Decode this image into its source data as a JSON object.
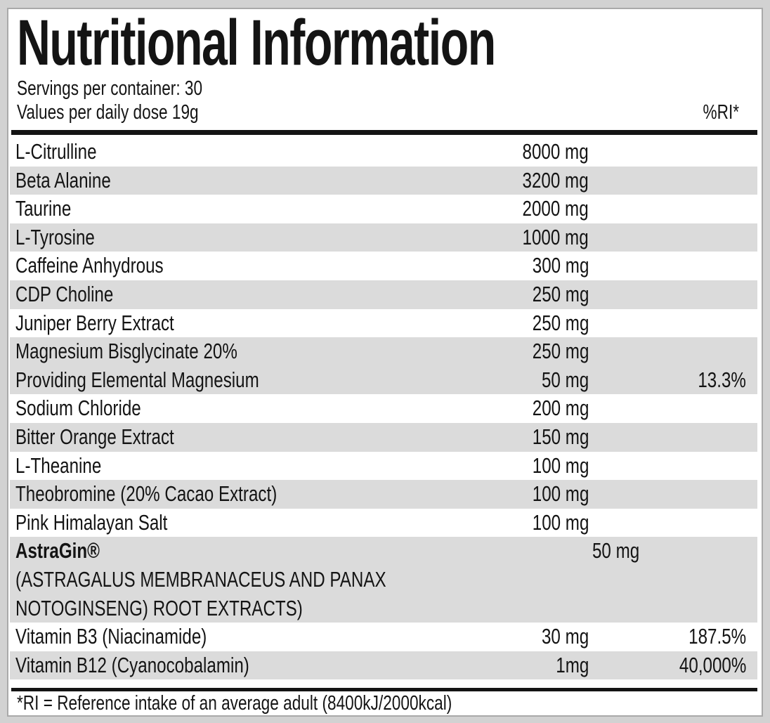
{
  "title": "Nutritional Information",
  "header": {
    "servings": "Servings per container: 30",
    "dose": "Values per daily dose 19g",
    "ri_column": "%RI*"
  },
  "table": {
    "rows": [
      {
        "name": "L-Citrulline",
        "amount": "8000 mg",
        "ri": "",
        "shaded": false
      },
      {
        "name": "Beta Alanine",
        "amount": "3200 mg",
        "ri": "",
        "shaded": true
      },
      {
        "name": "Taurine",
        "amount": "2000 mg",
        "ri": "",
        "shaded": false
      },
      {
        "name": "L-Tyrosine",
        "amount": "1000 mg",
        "ri": "",
        "shaded": true
      },
      {
        "name": "Caffeine Anhydrous",
        "amount": "300 mg",
        "ri": "",
        "shaded": false
      },
      {
        "name": "CDP Choline",
        "amount": "250 mg",
        "ri": "",
        "shaded": true
      },
      {
        "name": "Juniper Berry Extract",
        "amount": "250 mg",
        "ri": "",
        "shaded": false
      },
      {
        "name": "Magnesium Bisglycinate 20%",
        "amount": "250 mg",
        "ri": "",
        "shaded": true
      },
      {
        "name": "Providing Elemental Magnesium",
        "amount": "50 mg",
        "ri": "13.3%",
        "shaded": true
      },
      {
        "name": "Sodium Chloride",
        "amount": "200 mg",
        "ri": "",
        "shaded": false
      },
      {
        "name": "Bitter Orange Extract",
        "amount": "150 mg",
        "ri": "",
        "shaded": true
      },
      {
        "name": "L-Theanine",
        "amount": "100 mg",
        "ri": "",
        "shaded": false
      },
      {
        "name": "Theobromine (20% Cacao Extract)",
        "amount": "100 mg",
        "ri": "",
        "shaded": true
      },
      {
        "name": "Pink Himalayan Salt",
        "amount": "100 mg",
        "ri": "",
        "shaded": false
      },
      {
        "name": "AstraGin®",
        "amount": "50 mg",
        "ri": "",
        "shaded": true,
        "sublines": [
          "(ASTRAGALUS MEMBRANACEUS AND PANAX",
          "NOTOGINSENG) ROOT EXTRACTS)"
        ]
      },
      {
        "name": "Vitamin B3 (Niacinamide)",
        "amount": "30 mg",
        "ri": "187.5%",
        "shaded": false
      },
      {
        "name": "Vitamin B12 (Cyanocobalamin)",
        "amount": "1mg",
        "ri": "40,000%",
        "shaded": true
      }
    ]
  },
  "footnote": "*RI = Reference intake of an average adult (8400kJ/2000kcal)",
  "colors": {
    "row_shade": "#dbdbdb",
    "page_background": "#d2d2d2",
    "rule": "#141414",
    "panel_border": "#a9a9a9"
  }
}
